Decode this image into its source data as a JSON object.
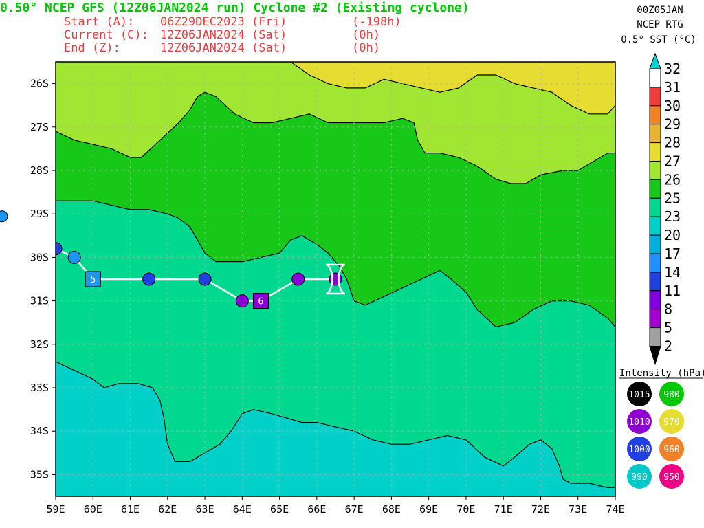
{
  "header": {
    "title": "0.50° NCEP GFS (12Z06JAN2024 run) Cyclone #2 (Existing cyclone)",
    "lines": [
      {
        "label": "Start (A):",
        "date": "06Z29DEC2023 (Fri)",
        "offset": "(-198h)"
      },
      {
        "label": "Current (C):",
        "date": "12Z06JAN2024 (Sat)",
        "offset": "(0h)"
      },
      {
        "label": "End (Z):",
        "date": "12Z06JAN2024 (Sat)",
        "offset": "(0h)"
      }
    ]
  },
  "corner_info": {
    "line1": "00Z05JAN",
    "line2": "NCEP RTG",
    "line3": "0.5° SST (°C)"
  },
  "colors": {
    "sst_2": "#a0a0a0",
    "sst_5": "#a000d0",
    "sst_8": "#8000e0",
    "sst_11": "#2040e0",
    "sst_14": "#1e90ff",
    "sst_17": "#00b0d8",
    "sst_20": "#00d0c8",
    "sst_23": "#00d890",
    "sst_25": "#18c818",
    "sst_26": "#a0e632",
    "sst_27": "#e6dc32",
    "sst_28": "#e6b430",
    "sst_29": "#f08228",
    "sst_30": "#f03c3c",
    "sst_31": "#f00082",
    "sst_32_cap": "#00d0d0",
    "track_line": "#ffffff",
    "title_text": "#00c800",
    "info_text": "#f03c3c"
  },
  "chart_data": {
    "type": "map-track",
    "xlim": [
      59,
      74
    ],
    "ylim": [
      -35.5,
      -25.5
    ],
    "x_ticks": [
      "59E",
      "60E",
      "61E",
      "62E",
      "63E",
      "64E",
      "65E",
      "66E",
      "67E",
      "68E",
      "69E",
      "70E",
      "71E",
      "72E",
      "73E",
      "74E"
    ],
    "y_ticks": [
      "26S",
      "27S",
      "28S",
      "29S",
      "30S",
      "31S",
      "32S",
      "33S",
      "34S",
      "35S"
    ],
    "colorbar": {
      "title": "0.5° SST (°C)",
      "levels": [
        "2",
        "5",
        "8",
        "11",
        "14",
        "17",
        "20",
        "23",
        "25",
        "26",
        "27",
        "28",
        "29",
        "30",
        "31",
        "32"
      ]
    },
    "isotherms": [
      {
        "level": 26,
        "points": [
          [
            59.0,
            -27.1
          ],
          [
            59.5,
            -27.3
          ],
          [
            60.0,
            -27.4
          ],
          [
            60.5,
            -27.5
          ],
          [
            61.0,
            -27.7
          ],
          [
            61.3,
            -27.7
          ],
          [
            61.8,
            -27.3
          ],
          [
            62.3,
            -26.9
          ],
          [
            62.6,
            -26.6
          ],
          [
            62.8,
            -26.3
          ],
          [
            63.0,
            -26.2
          ],
          [
            63.3,
            -26.3
          ],
          [
            63.8,
            -26.7
          ],
          [
            64.3,
            -26.9
          ],
          [
            64.8,
            -26.9
          ],
          [
            65.3,
            -26.8
          ],
          [
            65.8,
            -26.7
          ],
          [
            66.3,
            -26.9
          ],
          [
            66.8,
            -26.9
          ],
          [
            67.3,
            -26.9
          ],
          [
            67.8,
            -26.9
          ],
          [
            68.3,
            -26.8
          ],
          [
            68.6,
            -26.9
          ],
          [
            68.7,
            -27.3
          ],
          [
            68.9,
            -27.6
          ],
          [
            69.3,
            -27.6
          ],
          [
            69.8,
            -27.7
          ],
          [
            70.3,
            -27.9
          ],
          [
            70.8,
            -28.2
          ],
          [
            71.2,
            -28.3
          ],
          [
            71.6,
            -28.3
          ],
          [
            72.0,
            -28.1
          ],
          [
            72.6,
            -28.0
          ],
          [
            73.0,
            -28.0
          ],
          [
            73.4,
            -27.8
          ],
          [
            73.8,
            -27.6
          ],
          [
            74.0,
            -27.6
          ]
        ]
      },
      {
        "level": 27,
        "points": [
          [
            65.3,
            -25.5
          ],
          [
            65.8,
            -25.8
          ],
          [
            66.3,
            -26.0
          ],
          [
            66.8,
            -26.1
          ],
          [
            67.3,
            -26.1
          ],
          [
            67.8,
            -25.9
          ],
          [
            68.3,
            -26.0
          ],
          [
            68.8,
            -26.1
          ],
          [
            69.3,
            -26.2
          ],
          [
            69.8,
            -26.1
          ],
          [
            70.3,
            -25.8
          ],
          [
            70.8,
            -25.8
          ],
          [
            71.3,
            -26.0
          ],
          [
            71.8,
            -26.1
          ],
          [
            72.3,
            -26.2
          ],
          [
            72.8,
            -26.5
          ],
          [
            73.3,
            -26.7
          ],
          [
            73.8,
            -26.7
          ],
          [
            74.0,
            -26.5
          ]
        ]
      },
      {
        "level": 25,
        "points": [
          [
            59.0,
            -28.7
          ],
          [
            59.5,
            -28.7
          ],
          [
            60.0,
            -28.7
          ],
          [
            60.5,
            -28.8
          ],
          [
            61.0,
            -28.9
          ],
          [
            61.5,
            -28.9
          ],
          [
            62.0,
            -29.0
          ],
          [
            62.3,
            -29.1
          ],
          [
            62.6,
            -29.3
          ],
          [
            62.8,
            -29.6
          ],
          [
            63.0,
            -29.9
          ],
          [
            63.3,
            -30.1
          ],
          [
            63.6,
            -30.1
          ],
          [
            64.0,
            -30.1
          ],
          [
            64.5,
            -30.0
          ],
          [
            65.0,
            -29.9
          ],
          [
            65.3,
            -29.6
          ],
          [
            65.6,
            -29.5
          ],
          [
            66.0,
            -29.7
          ],
          [
            66.3,
            -29.9
          ],
          [
            66.6,
            -30.2
          ],
          [
            66.8,
            -30.5
          ],
          [
            67.0,
            -31.0
          ],
          [
            67.3,
            -31.1
          ],
          [
            67.8,
            -30.9
          ],
          [
            68.3,
            -30.7
          ],
          [
            68.8,
            -30.5
          ],
          [
            69.3,
            -30.3
          ],
          [
            69.6,
            -30.5
          ],
          [
            70.0,
            -30.8
          ],
          [
            70.3,
            -31.2
          ],
          [
            70.8,
            -31.6
          ],
          [
            71.3,
            -31.5
          ],
          [
            71.8,
            -31.2
          ],
          [
            72.3,
            -31.0
          ],
          [
            72.8,
            -31.0
          ],
          [
            73.3,
            -31.1
          ],
          [
            73.8,
            -31.4
          ],
          [
            74.0,
            -31.6
          ]
        ]
      },
      {
        "level": 20,
        "points": [
          [
            59.0,
            -32.4
          ],
          [
            59.5,
            -32.6
          ],
          [
            60.0,
            -32.8
          ],
          [
            60.3,
            -33.0
          ],
          [
            60.7,
            -32.9
          ],
          [
            61.2,
            -32.9
          ],
          [
            61.6,
            -33.0
          ],
          [
            61.8,
            -33.3
          ],
          [
            61.9,
            -33.7
          ],
          [
            62.0,
            -34.3
          ],
          [
            62.2,
            -34.7
          ],
          [
            62.6,
            -34.7
          ],
          [
            63.0,
            -34.5
          ],
          [
            63.4,
            -34.3
          ],
          [
            63.7,
            -34.0
          ],
          [
            64.0,
            -33.6
          ],
          [
            64.3,
            -33.5
          ],
          [
            64.8,
            -33.6
          ],
          [
            65.2,
            -33.7
          ],
          [
            65.6,
            -33.8
          ],
          [
            66.0,
            -33.8
          ],
          [
            66.5,
            -33.9
          ],
          [
            67.0,
            -34.0
          ],
          [
            67.5,
            -34.2
          ],
          [
            68.0,
            -34.3
          ],
          [
            68.5,
            -34.3
          ],
          [
            69.0,
            -34.2
          ],
          [
            69.5,
            -34.1
          ],
          [
            70.0,
            -34.2
          ],
          [
            70.5,
            -34.6
          ],
          [
            71.0,
            -34.8
          ],
          [
            71.3,
            -34.6
          ],
          [
            71.7,
            -34.3
          ],
          [
            72.0,
            -34.2
          ],
          [
            72.3,
            -34.4
          ],
          [
            72.5,
            -34.8
          ],
          [
            72.6,
            -35.1
          ],
          [
            72.8,
            -35.2
          ],
          [
            73.3,
            -35.2
          ],
          [
            73.8,
            -35.3
          ],
          [
            74.0,
            -35.3
          ]
        ]
      }
    ],
    "track": [
      {
        "lon": 59.0,
        "lat": -29.8,
        "label": "",
        "marker": "circle",
        "pressure_class": "1000"
      },
      {
        "lon": 59.5,
        "lat": -30.0,
        "label": "",
        "marker": "circle",
        "pressure_class": "990"
      },
      {
        "lon": 60.0,
        "lat": -30.5,
        "label": "5",
        "marker": "square",
        "pressure_class": "990"
      },
      {
        "lon": 61.5,
        "lat": -30.5,
        "label": "",
        "marker": "circle",
        "pressure_class": "1000"
      },
      {
        "lon": 63.0,
        "lat": -30.5,
        "label": "",
        "marker": "circle",
        "pressure_class": "1000"
      },
      {
        "lon": 64.0,
        "lat": -31.0,
        "label": "",
        "marker": "circle",
        "pressure_class": "1010"
      },
      {
        "lon": 64.5,
        "lat": -31.0,
        "label": "6",
        "marker": "square",
        "pressure_class": "1010"
      },
      {
        "lon": 65.5,
        "lat": -30.5,
        "label": "",
        "marker": "circle",
        "pressure_class": "1010"
      },
      {
        "lon": 66.5,
        "lat": -30.5,
        "label": "",
        "marker": "circle",
        "pressure_class": "1010"
      }
    ],
    "offchart_point": {
      "lon": 58.0,
      "lat": -29.5,
      "pressure_class": "990"
    },
    "current_marker": {
      "lon": 66.5,
      "lat": -30.5
    },
    "intensity_legend": {
      "title": "Intensity (hPa):",
      "items": [
        {
          "label": "1015",
          "color": "#000000"
        },
        {
          "label": "980",
          "color": "#00c800"
        },
        {
          "label": "1010",
          "color": "#9000d0"
        },
        {
          "label": "970",
          "color": "#e6dc32"
        },
        {
          "label": "1000",
          "color": "#2040e0"
        },
        {
          "label": "960",
          "color": "#f08228"
        },
        {
          "label": "990",
          "color": "#00c8c8"
        },
        {
          "label": "950",
          "color": "#f00082"
        }
      ]
    }
  }
}
